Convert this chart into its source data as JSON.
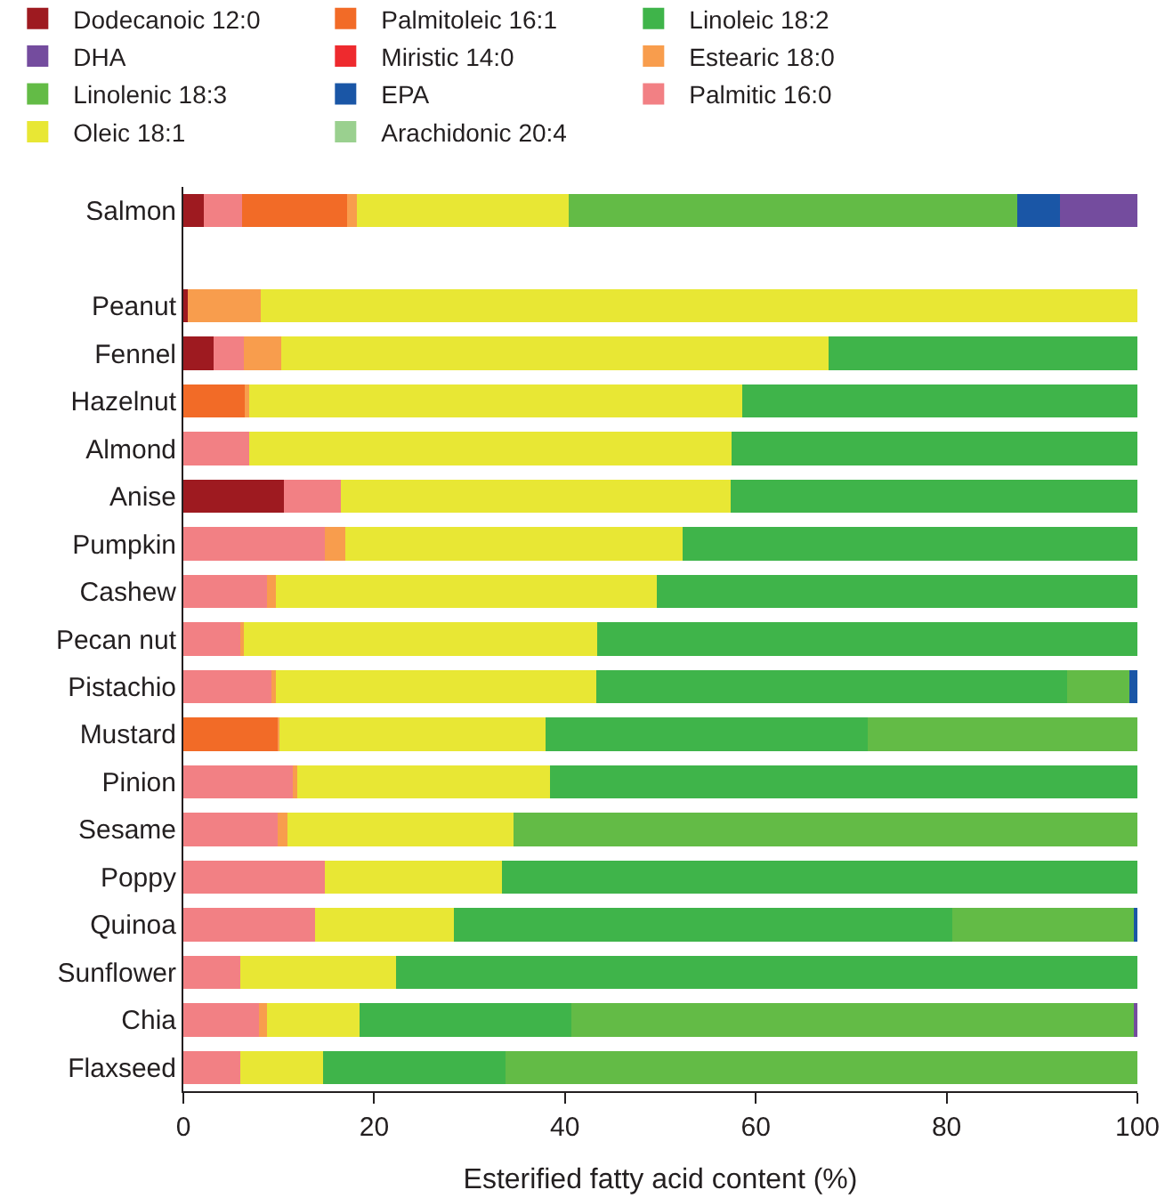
{
  "chart_data": {
    "type": "bar",
    "orientation": "horizontal",
    "stacked": true,
    "xlabel": "Esterified fatty acid content (%)",
    "categories": [
      "Salmon",
      null,
      "Peanut",
      "Fennel",
      "Hazelnut",
      "Almond",
      "Anise",
      "Pumpkin",
      "Cashew",
      "Pecan nut",
      "Pistachio",
      "Mustard",
      "Pinion",
      "Sesame",
      "Poppy",
      "Quinoa",
      "Sunflower",
      "Chia",
      "Flaxseed"
    ],
    "xlim": [
      0,
      100
    ],
    "xticks": [
      0,
      20,
      40,
      60,
      80,
      100
    ],
    "legend": "top",
    "series": [
      {
        "name": "Dodecanoic 12:0",
        "color": "#9e1a20",
        "values": [
          2.1,
          null,
          0.5,
          3.2,
          null,
          null,
          10.5,
          null,
          null,
          null,
          null,
          null,
          null,
          null,
          null,
          null,
          null,
          null,
          null
        ]
      },
      {
        "name": "Miristic 14:0",
        "color": "#ee2a2e",
        "values": [
          null,
          null,
          null,
          null,
          null,
          null,
          null,
          null,
          null,
          null,
          null,
          null,
          null,
          null,
          null,
          null,
          null,
          null,
          null
        ]
      },
      {
        "name": "Palmitic 16:0",
        "color": "#f28084",
        "values": [
          4.1,
          null,
          null,
          3.1,
          null,
          6.9,
          6.0,
          14.8,
          8.8,
          6.0,
          9.2,
          null,
          11.5,
          9.9,
          14.8,
          13.8,
          6.0,
          7.9,
          6.0
        ]
      },
      {
        "name": "Palmitoleic 16:1",
        "color": "#f26b27",
        "values": [
          11.0,
          null,
          null,
          null,
          6.4,
          null,
          null,
          null,
          null,
          null,
          null,
          9.9,
          null,
          null,
          null,
          null,
          null,
          null,
          null
        ]
      },
      {
        "name": "Estearic 18:0",
        "color": "#f89d4d",
        "values": [
          1.0,
          null,
          7.6,
          4.0,
          0.5,
          null,
          null,
          2.2,
          0.9,
          0.3,
          0.5,
          0.2,
          0.4,
          1.0,
          null,
          null,
          null,
          0.9,
          null
        ]
      },
      {
        "name": "Oleic 18:1",
        "color": "#e8e734",
        "values": [
          22.2,
          null,
          91.9,
          57.3,
          51.7,
          50.6,
          40.9,
          35.3,
          39.9,
          37.1,
          33.6,
          27.9,
          26.5,
          23.7,
          18.6,
          14.6,
          16.3,
          9.7,
          8.6
        ]
      },
      {
        "name": "Linoleic 18:2",
        "color": "#3fb44a",
        "values": [
          null,
          null,
          null,
          32.4,
          41.4,
          42.5,
          42.6,
          47.7,
          50.4,
          56.6,
          49.3,
          33.7,
          61.6,
          null,
          66.6,
          52.2,
          77.7,
          22.2,
          19.2
        ]
      },
      {
        "name": "Linolenic 18:3",
        "color": "#63bb46",
        "values": [
          47.0,
          null,
          null,
          null,
          null,
          null,
          null,
          null,
          null,
          null,
          6.6,
          28.3,
          null,
          65.4,
          null,
          19.1,
          null,
          59.1,
          66.2
        ]
      },
      {
        "name": "Arachidonic 20:4",
        "color": "#9ad08f",
        "values": [
          null,
          null,
          null,
          null,
          null,
          null,
          null,
          null,
          null,
          null,
          null,
          null,
          null,
          null,
          null,
          null,
          null,
          null,
          null
        ]
      },
      {
        "name": "EPA",
        "color": "#1a56a6",
        "values": [
          4.5,
          null,
          null,
          null,
          null,
          null,
          null,
          null,
          null,
          null,
          0.8,
          null,
          null,
          null,
          null,
          0.3,
          null,
          null,
          null
        ]
      },
      {
        "name": "DHA",
        "color": "#744c9e",
        "values": [
          8.1,
          null,
          null,
          null,
          null,
          null,
          null,
          null,
          null,
          null,
          null,
          null,
          null,
          null,
          null,
          null,
          null,
          0.2,
          null
        ]
      }
    ]
  }
}
